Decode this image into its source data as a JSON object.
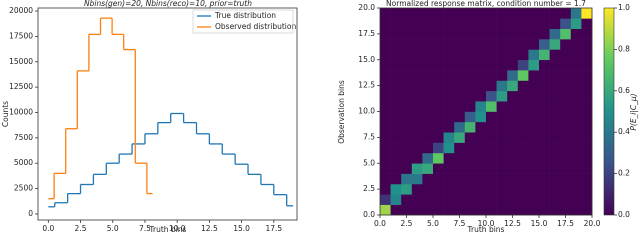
{
  "chart_data": [
    {
      "type": "step",
      "title": "Nbins(gen)=20, Nbins(reco)=10, prior=truth",
      "x_label": "Truth bins",
      "y_label": "Counts",
      "xlim": [
        -0.8,
        19.3
      ],
      "ylim": [
        -600,
        20300
      ],
      "xticks": [
        {
          "value": 0,
          "label": "0.0"
        },
        {
          "value": 2.5,
          "label": "2.5"
        },
        {
          "value": 5,
          "label": "5.0"
        },
        {
          "value": 7.5,
          "label": "7.5"
        },
        {
          "value": 10,
          "label": "10.0"
        },
        {
          "value": 12.5,
          "label": "12.5"
        },
        {
          "value": 15,
          "label": "15.0"
        },
        {
          "value": 17.5,
          "label": "17.5"
        }
      ],
      "yticks": [
        0,
        2500,
        5000,
        7500,
        10000,
        12500,
        15000,
        17500,
        20000
      ],
      "legend": "upper right",
      "series": [
        {
          "name": "True distribution",
          "color": "#1f77b4",
          "x": [
            0,
            1,
            2,
            3,
            4,
            5,
            6,
            7,
            8,
            9,
            10,
            11,
            12,
            13,
            14,
            15,
            16,
            17,
            18,
            19
          ],
          "values": [
            700,
            1100,
            2000,
            2900,
            3900,
            5000,
            5900,
            6900,
            7900,
            9000,
            9900,
            9000,
            7900,
            6900,
            5900,
            4900,
            3900,
            2900,
            1900,
            800
          ]
        },
        {
          "name": "Observed distribution",
          "color": "#ff7f0e",
          "x": [
            0,
            0.9,
            1.8,
            2.7,
            3.6,
            4.5,
            5.4,
            6.3,
            7.2,
            8.1
          ],
          "values": [
            1500,
            4000,
            8400,
            14100,
            17700,
            19300,
            17700,
            16200,
            5000,
            2000
          ]
        }
      ]
    },
    {
      "type": "heatmap",
      "title": "Normalized response matrix, condition number = 1.7",
      "x_label": "Truth bins",
      "y_label": "Observation bins",
      "xlim": [
        0,
        20
      ],
      "ylim": [
        0,
        20
      ],
      "xticks": [
        {
          "value": 0,
          "label": "0.0"
        },
        {
          "value": 2.5,
          "label": "2.5"
        },
        {
          "value": 5,
          "label": "5.0"
        },
        {
          "value": 7.5,
          "label": "7.5"
        },
        {
          "value": 10,
          "label": "10.0"
        },
        {
          "value": 12.5,
          "label": "12.5"
        },
        {
          "value": 15,
          "label": "15.0"
        },
        {
          "value": 17.5,
          "label": "17.5"
        },
        {
          "value": 20,
          "label": "20.0"
        }
      ],
      "yticks": [
        {
          "value": 0,
          "label": "0.0"
        },
        {
          "value": 2.5,
          "label": "2.5"
        },
        {
          "value": 5,
          "label": "5.0"
        },
        {
          "value": 7.5,
          "label": "7.5"
        },
        {
          "value": 10,
          "label": "10.0"
        },
        {
          "value": 12.5,
          "label": "12.5"
        },
        {
          "value": 15,
          "label": "15.0"
        },
        {
          "value": 17.5,
          "label": "17.5"
        },
        {
          "value": 20,
          "label": "20.0"
        }
      ],
      "colorbar_label": "P(E_i|C_μ)",
      "clim": [
        0,
        1
      ],
      "colorbar_ticks": [
        {
          "value": 0,
          "label": "0.0"
        },
        {
          "value": 0.2,
          "label": "0.2"
        },
        {
          "value": 0.4,
          "label": "0.4"
        },
        {
          "value": 0.6,
          "label": "0.6"
        },
        {
          "value": 0.8,
          "label": "0.8"
        },
        {
          "value": 1,
          "label": "1.0"
        }
      ],
      "z": [
        [
          0.85,
          0,
          0,
          0,
          0,
          0,
          0,
          0,
          0,
          0,
          0,
          0,
          0,
          0,
          0,
          0,
          0,
          0,
          0,
          0
        ],
        [
          0.15,
          0.45,
          0,
          0,
          0,
          0,
          0,
          0,
          0,
          0,
          0,
          0,
          0,
          0,
          0,
          0,
          0,
          0,
          0,
          0
        ],
        [
          0,
          0.5,
          0.55,
          0,
          0,
          0,
          0,
          0,
          0,
          0,
          0,
          0,
          0,
          0,
          0,
          0,
          0,
          0,
          0,
          0
        ],
        [
          0,
          0,
          0.4,
          0.4,
          0,
          0,
          0,
          0,
          0,
          0,
          0,
          0,
          0,
          0,
          0,
          0,
          0,
          0,
          0,
          0
        ],
        [
          0,
          0,
          0,
          0.55,
          0.6,
          0,
          0,
          0,
          0,
          0,
          0,
          0,
          0,
          0,
          0,
          0,
          0,
          0,
          0,
          0
        ],
        [
          0,
          0,
          0,
          0,
          0.35,
          0.75,
          0,
          0,
          0,
          0,
          0,
          0,
          0,
          0,
          0,
          0,
          0,
          0,
          0,
          0
        ],
        [
          0,
          0,
          0,
          0,
          0,
          0.2,
          0.5,
          0,
          0,
          0,
          0,
          0,
          0,
          0,
          0,
          0,
          0,
          0,
          0,
          0
        ],
        [
          0,
          0,
          0,
          0,
          0,
          0,
          0.45,
          0.6,
          0,
          0,
          0,
          0,
          0,
          0,
          0,
          0,
          0,
          0,
          0,
          0
        ],
        [
          0,
          0,
          0,
          0,
          0,
          0,
          0,
          0.35,
          0.65,
          0,
          0,
          0,
          0,
          0,
          0,
          0,
          0,
          0,
          0,
          0
        ],
        [
          0,
          0,
          0,
          0,
          0,
          0,
          0,
          0,
          0.3,
          0.5,
          0,
          0,
          0,
          0,
          0,
          0,
          0,
          0,
          0,
          0
        ],
        [
          0,
          0,
          0,
          0,
          0,
          0,
          0,
          0,
          0,
          0.45,
          0.7,
          0,
          0,
          0,
          0,
          0,
          0,
          0,
          0,
          0
        ],
        [
          0,
          0,
          0,
          0,
          0,
          0,
          0,
          0,
          0,
          0,
          0.25,
          0.55,
          0,
          0,
          0,
          0,
          0,
          0,
          0,
          0
        ],
        [
          0,
          0,
          0,
          0,
          0,
          0,
          0,
          0,
          0,
          0,
          0,
          0.4,
          0.6,
          0,
          0,
          0,
          0,
          0,
          0,
          0
        ],
        [
          0,
          0,
          0,
          0,
          0,
          0,
          0,
          0,
          0,
          0,
          0,
          0,
          0.35,
          0.75,
          0,
          0,
          0,
          0,
          0,
          0
        ],
        [
          0,
          0,
          0,
          0,
          0,
          0,
          0,
          0,
          0,
          0,
          0,
          0,
          0,
          0.2,
          0.55,
          0,
          0,
          0,
          0,
          0
        ],
        [
          0,
          0,
          0,
          0,
          0,
          0,
          0,
          0,
          0,
          0,
          0,
          0,
          0,
          0,
          0.4,
          0.65,
          0,
          0,
          0,
          0
        ],
        [
          0,
          0,
          0,
          0,
          0,
          0,
          0,
          0,
          0,
          0,
          0,
          0,
          0,
          0,
          0,
          0.3,
          0.6,
          0,
          0,
          0
        ],
        [
          0,
          0,
          0,
          0,
          0,
          0,
          0,
          0,
          0,
          0,
          0,
          0,
          0,
          0,
          0,
          0,
          0.35,
          0.7,
          0,
          0
        ],
        [
          0,
          0,
          0,
          0,
          0,
          0,
          0,
          0,
          0,
          0,
          0,
          0,
          0,
          0,
          0,
          0,
          0,
          0.25,
          0.55,
          0
        ],
        [
          0,
          0,
          0,
          0,
          0,
          0,
          0,
          0,
          0,
          0,
          0,
          0,
          0,
          0,
          0,
          0,
          0,
          0,
          0.4,
          1.0
        ]
      ]
    }
  ]
}
